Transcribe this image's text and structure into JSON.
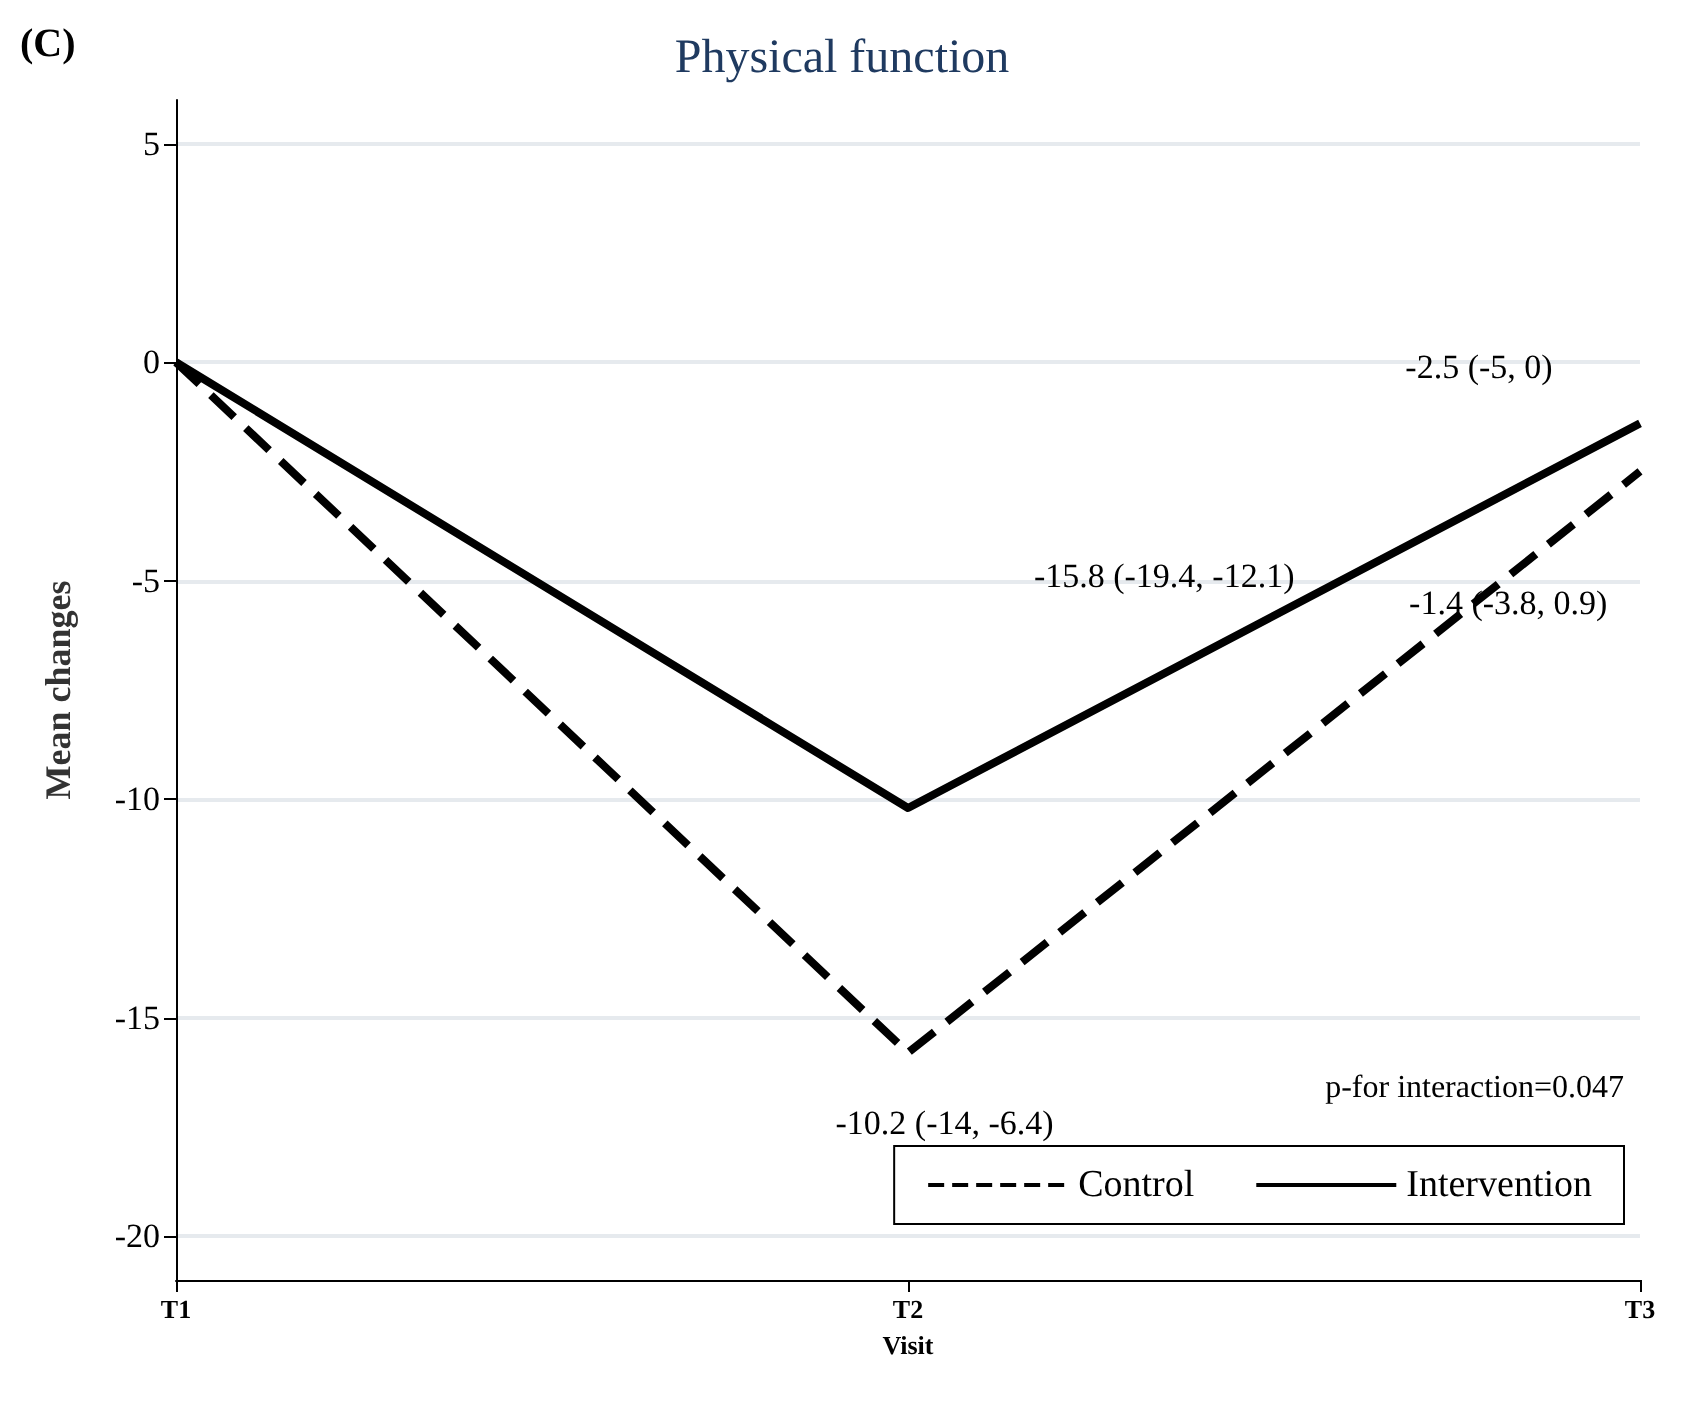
{
  "chart_data": {
    "type": "line",
    "title": "Physical function",
    "xlabel": "Visit",
    "ylabel": "Mean changes",
    "categories": [
      "T1",
      "T2",
      "T3"
    ],
    "series": [
      {
        "name": "Control",
        "color": "#000000",
        "line_style": "dashed",
        "values": [
          0,
          -15.8,
          -2.5
        ]
      },
      {
        "name": "Intervention",
        "color": "#000000",
        "line_style": "solid",
        "values": [
          0,
          -10.2,
          -1.4
        ]
      }
    ],
    "ylim": [
      -21,
      6
    ],
    "yticks": [
      -20,
      -15,
      -10,
      -5,
      0,
      5
    ],
    "grid": "y",
    "legend": "bottom right",
    "marker": "none",
    "annotations": [
      "(C)",
      "p-for interaction=0.047",
      "-15.8 (-19.4, -12.1)",
      "-10.2 (-14, -6.4)",
      "-2.5 (-5, 0)",
      "-1.4 (-3.8, 0.9)"
    ]
  }
}
